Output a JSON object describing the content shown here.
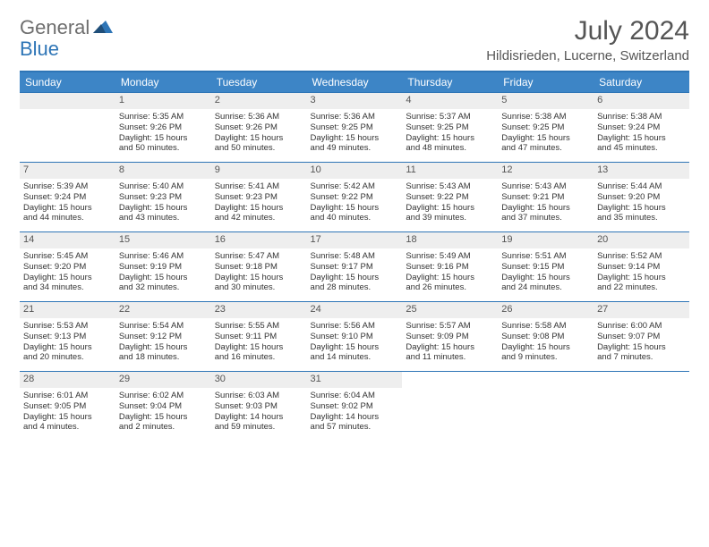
{
  "brand": {
    "general": "General",
    "blue": "Blue"
  },
  "title": "July 2024",
  "location": "Hildisrieden, Lucerne, Switzerland",
  "colors": {
    "header_bg": "#3d85c6",
    "border": "#2e75b6",
    "daynum_bg": "#eeeeee",
    "text": "#333333"
  },
  "weekdays": [
    "Sunday",
    "Monday",
    "Tuesday",
    "Wednesday",
    "Thursday",
    "Friday",
    "Saturday"
  ],
  "weeks": [
    [
      null,
      {
        "n": "1",
        "sunrise": "Sunrise: 5:35 AM",
        "sunset": "Sunset: 9:26 PM",
        "day1": "Daylight: 15 hours",
        "day2": "and 50 minutes."
      },
      {
        "n": "2",
        "sunrise": "Sunrise: 5:36 AM",
        "sunset": "Sunset: 9:26 PM",
        "day1": "Daylight: 15 hours",
        "day2": "and 50 minutes."
      },
      {
        "n": "3",
        "sunrise": "Sunrise: 5:36 AM",
        "sunset": "Sunset: 9:25 PM",
        "day1": "Daylight: 15 hours",
        "day2": "and 49 minutes."
      },
      {
        "n": "4",
        "sunrise": "Sunrise: 5:37 AM",
        "sunset": "Sunset: 9:25 PM",
        "day1": "Daylight: 15 hours",
        "day2": "and 48 minutes."
      },
      {
        "n": "5",
        "sunrise": "Sunrise: 5:38 AM",
        "sunset": "Sunset: 9:25 PM",
        "day1": "Daylight: 15 hours",
        "day2": "and 47 minutes."
      },
      {
        "n": "6",
        "sunrise": "Sunrise: 5:38 AM",
        "sunset": "Sunset: 9:24 PM",
        "day1": "Daylight: 15 hours",
        "day2": "and 45 minutes."
      }
    ],
    [
      {
        "n": "7",
        "sunrise": "Sunrise: 5:39 AM",
        "sunset": "Sunset: 9:24 PM",
        "day1": "Daylight: 15 hours",
        "day2": "and 44 minutes."
      },
      {
        "n": "8",
        "sunrise": "Sunrise: 5:40 AM",
        "sunset": "Sunset: 9:23 PM",
        "day1": "Daylight: 15 hours",
        "day2": "and 43 minutes."
      },
      {
        "n": "9",
        "sunrise": "Sunrise: 5:41 AM",
        "sunset": "Sunset: 9:23 PM",
        "day1": "Daylight: 15 hours",
        "day2": "and 42 minutes."
      },
      {
        "n": "10",
        "sunrise": "Sunrise: 5:42 AM",
        "sunset": "Sunset: 9:22 PM",
        "day1": "Daylight: 15 hours",
        "day2": "and 40 minutes."
      },
      {
        "n": "11",
        "sunrise": "Sunrise: 5:43 AM",
        "sunset": "Sunset: 9:22 PM",
        "day1": "Daylight: 15 hours",
        "day2": "and 39 minutes."
      },
      {
        "n": "12",
        "sunrise": "Sunrise: 5:43 AM",
        "sunset": "Sunset: 9:21 PM",
        "day1": "Daylight: 15 hours",
        "day2": "and 37 minutes."
      },
      {
        "n": "13",
        "sunrise": "Sunrise: 5:44 AM",
        "sunset": "Sunset: 9:20 PM",
        "day1": "Daylight: 15 hours",
        "day2": "and 35 minutes."
      }
    ],
    [
      {
        "n": "14",
        "sunrise": "Sunrise: 5:45 AM",
        "sunset": "Sunset: 9:20 PM",
        "day1": "Daylight: 15 hours",
        "day2": "and 34 minutes."
      },
      {
        "n": "15",
        "sunrise": "Sunrise: 5:46 AM",
        "sunset": "Sunset: 9:19 PM",
        "day1": "Daylight: 15 hours",
        "day2": "and 32 minutes."
      },
      {
        "n": "16",
        "sunrise": "Sunrise: 5:47 AM",
        "sunset": "Sunset: 9:18 PM",
        "day1": "Daylight: 15 hours",
        "day2": "and 30 minutes."
      },
      {
        "n": "17",
        "sunrise": "Sunrise: 5:48 AM",
        "sunset": "Sunset: 9:17 PM",
        "day1": "Daylight: 15 hours",
        "day2": "and 28 minutes."
      },
      {
        "n": "18",
        "sunrise": "Sunrise: 5:49 AM",
        "sunset": "Sunset: 9:16 PM",
        "day1": "Daylight: 15 hours",
        "day2": "and 26 minutes."
      },
      {
        "n": "19",
        "sunrise": "Sunrise: 5:51 AM",
        "sunset": "Sunset: 9:15 PM",
        "day1": "Daylight: 15 hours",
        "day2": "and 24 minutes."
      },
      {
        "n": "20",
        "sunrise": "Sunrise: 5:52 AM",
        "sunset": "Sunset: 9:14 PM",
        "day1": "Daylight: 15 hours",
        "day2": "and 22 minutes."
      }
    ],
    [
      {
        "n": "21",
        "sunrise": "Sunrise: 5:53 AM",
        "sunset": "Sunset: 9:13 PM",
        "day1": "Daylight: 15 hours",
        "day2": "and 20 minutes."
      },
      {
        "n": "22",
        "sunrise": "Sunrise: 5:54 AM",
        "sunset": "Sunset: 9:12 PM",
        "day1": "Daylight: 15 hours",
        "day2": "and 18 minutes."
      },
      {
        "n": "23",
        "sunrise": "Sunrise: 5:55 AM",
        "sunset": "Sunset: 9:11 PM",
        "day1": "Daylight: 15 hours",
        "day2": "and 16 minutes."
      },
      {
        "n": "24",
        "sunrise": "Sunrise: 5:56 AM",
        "sunset": "Sunset: 9:10 PM",
        "day1": "Daylight: 15 hours",
        "day2": "and 14 minutes."
      },
      {
        "n": "25",
        "sunrise": "Sunrise: 5:57 AM",
        "sunset": "Sunset: 9:09 PM",
        "day1": "Daylight: 15 hours",
        "day2": "and 11 minutes."
      },
      {
        "n": "26",
        "sunrise": "Sunrise: 5:58 AM",
        "sunset": "Sunset: 9:08 PM",
        "day1": "Daylight: 15 hours",
        "day2": "and 9 minutes."
      },
      {
        "n": "27",
        "sunrise": "Sunrise: 6:00 AM",
        "sunset": "Sunset: 9:07 PM",
        "day1": "Daylight: 15 hours",
        "day2": "and 7 minutes."
      }
    ],
    [
      {
        "n": "28",
        "sunrise": "Sunrise: 6:01 AM",
        "sunset": "Sunset: 9:05 PM",
        "day1": "Daylight: 15 hours",
        "day2": "and 4 minutes."
      },
      {
        "n": "29",
        "sunrise": "Sunrise: 6:02 AM",
        "sunset": "Sunset: 9:04 PM",
        "day1": "Daylight: 15 hours",
        "day2": "and 2 minutes."
      },
      {
        "n": "30",
        "sunrise": "Sunrise: 6:03 AM",
        "sunset": "Sunset: 9:03 PM",
        "day1": "Daylight: 14 hours",
        "day2": "and 59 minutes."
      },
      {
        "n": "31",
        "sunrise": "Sunrise: 6:04 AM",
        "sunset": "Sunset: 9:02 PM",
        "day1": "Daylight: 14 hours",
        "day2": "and 57 minutes."
      },
      null,
      null,
      null
    ]
  ]
}
